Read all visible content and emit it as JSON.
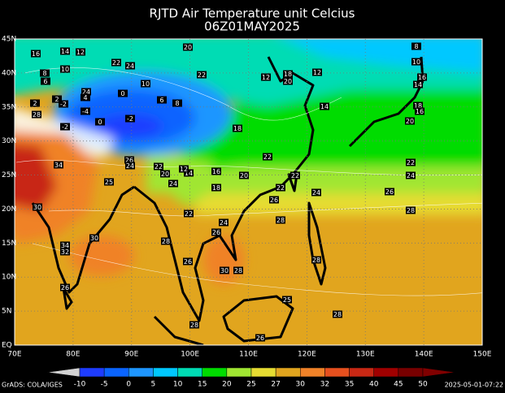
{
  "header": {
    "title": "RJTD Air Temperature unit Celcius",
    "subtitle": "06Z01MAY2025"
  },
  "map": {
    "lat_labels": [
      "45N",
      "40N",
      "35N",
      "30N",
      "25N",
      "20N",
      "15N",
      "10N",
      "5N",
      "EQ"
    ],
    "lon_labels": [
      "70E",
      "80E",
      "90E",
      "100E",
      "110E",
      "120E",
      "130E",
      "140E",
      "150E"
    ],
    "contour_labels": [
      16,
      14,
      12,
      22,
      24,
      20,
      8,
      10,
      8,
      10,
      22,
      12,
      18,
      20,
      12,
      16,
      14,
      6,
      10,
      24,
      0,
      4,
      6,
      8,
      2,
      -4,
      14,
      18,
      16,
      20,
      2,
      -2,
      28,
      -2,
      0,
      -2,
      18,
      34,
      26,
      24,
      22,
      20,
      14,
      12,
      16,
      20,
      22,
      22,
      22,
      24,
      25,
      24,
      18,
      22,
      26,
      24,
      26,
      30,
      22,
      24,
      26,
      28,
      28,
      30,
      28,
      34,
      32,
      26,
      30,
      28,
      28,
      26,
      25,
      28,
      28,
      26
    ]
  },
  "colorbar": {
    "ticks": [
      -10,
      -5,
      0,
      5,
      10,
      15,
      20,
      25,
      27,
      30,
      32,
      35,
      40,
      45,
      50
    ],
    "colors": [
      "#d2d2d2",
      "#1e3cff",
      "#0a64ff",
      "#1e96ff",
      "#00c8ff",
      "#00dcb4",
      "#00dc00",
      "#a0e632",
      "#e6dc32",
      "#e1a51e",
      "#f08228",
      "#e6501e",
      "#c82814",
      "#a00000",
      "#780000",
      "#800000"
    ]
  },
  "footer": {
    "left": "GrADS: COLA/IGES",
    "right": "2025-05-01-07:22"
  }
}
